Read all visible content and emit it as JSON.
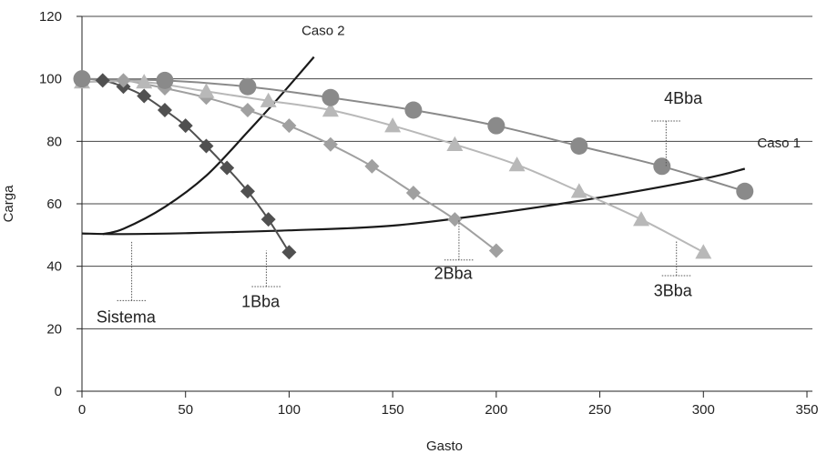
{
  "chart_data": {
    "type": "scatter",
    "title": "",
    "xlabel": "Gasto",
    "ylabel": "Carga",
    "xlim": [
      0,
      350
    ],
    "ylim": [
      0,
      120
    ],
    "xticks": [
      0,
      50,
      100,
      150,
      200,
      250,
      300,
      350
    ],
    "yticks": [
      0,
      20,
      40,
      60,
      80,
      100,
      120
    ],
    "grid": "horizontal",
    "series": [
      {
        "name": "1Bba",
        "marker": "diamond",
        "color": "#505050",
        "points": [
          [
            0,
            100
          ],
          [
            10,
            99.5
          ],
          [
            20,
            97.5
          ],
          [
            30,
            94.5
          ],
          [
            40,
            90
          ],
          [
            50,
            85
          ],
          [
            60,
            78.5
          ],
          [
            70,
            71.5
          ],
          [
            80,
            64
          ],
          [
            90,
            55
          ],
          [
            100,
            44.5
          ]
        ]
      },
      {
        "name": "2Bba",
        "marker": "diamond",
        "color": "#a0a0a0",
        "points": [
          [
            0,
            100
          ],
          [
            20,
            99.5
          ],
          [
            40,
            97
          ],
          [
            60,
            94
          ],
          [
            80,
            90
          ],
          [
            100,
            85
          ],
          [
            120,
            79
          ],
          [
            140,
            72
          ],
          [
            160,
            63.5
          ],
          [
            180,
            55
          ],
          [
            200,
            45
          ]
        ]
      },
      {
        "name": "3Bba",
        "marker": "triangle",
        "color": "#b8b8b8",
        "points": [
          [
            0,
            99
          ],
          [
            30,
            99
          ],
          [
            60,
            96
          ],
          [
            90,
            93
          ],
          [
            120,
            90
          ],
          [
            150,
            85
          ],
          [
            180,
            79
          ],
          [
            210,
            72.5
          ],
          [
            240,
            64
          ],
          [
            270,
            55
          ],
          [
            300,
            44.5
          ]
        ]
      },
      {
        "name": "4Bba",
        "marker": "circle",
        "color": "#8a8a8a",
        "points": [
          [
            0,
            100
          ],
          [
            40,
            99.5
          ],
          [
            80,
            97.5
          ],
          [
            120,
            94
          ],
          [
            160,
            90
          ],
          [
            200,
            85
          ],
          [
            240,
            78.5
          ],
          [
            280,
            72
          ],
          [
            320,
            64
          ]
        ]
      }
    ],
    "system_curves": [
      {
        "name": "Sistema",
        "color": "#1a1a1a",
        "points": [
          [
            0,
            50.5
          ],
          [
            20,
            50.3
          ],
          [
            50,
            50.6
          ],
          [
            100,
            51.5
          ],
          [
            150,
            53
          ],
          [
            200,
            57
          ],
          [
            250,
            62
          ],
          [
            300,
            68
          ],
          [
            320,
            71.2
          ]
        ]
      },
      {
        "name": "Caso 2",
        "color": "#1a1a1a",
        "points": [
          [
            10,
            50.3
          ],
          [
            20,
            52
          ],
          [
            40,
            59
          ],
          [
            60,
            69
          ],
          [
            80,
            83
          ],
          [
            95,
            94
          ],
          [
            112,
            107
          ]
        ]
      }
    ],
    "annotations": [
      {
        "text": "Caso 2",
        "x": 106,
        "y": 114,
        "leader": []
      },
      {
        "text": "Caso 1",
        "x": 326,
        "y": 78,
        "leader": []
      },
      {
        "text": "4Bba",
        "x": 281,
        "y": 92,
        "leader": [
          [
            282,
            86.5
          ],
          [
            282,
            72
          ]
        ]
      },
      {
        "text": "3Bba",
        "x": 276,
        "y": 30.5,
        "leader": [
          [
            287,
            37
          ],
          [
            287,
            48
          ]
        ]
      },
      {
        "text": "2Bba",
        "x": 170,
        "y": 36,
        "leader": [
          [
            182,
            42
          ],
          [
            182,
            55
          ]
        ]
      },
      {
        "text": "1Bba",
        "x": 77,
        "y": 27,
        "leader": [
          [
            89,
            33.5
          ],
          [
            89,
            45
          ]
        ]
      },
      {
        "text": "Sistema",
        "x": 7,
        "y": 22,
        "leader": [
          [
            24,
            29
          ],
          [
            24,
            48
          ]
        ]
      }
    ]
  }
}
